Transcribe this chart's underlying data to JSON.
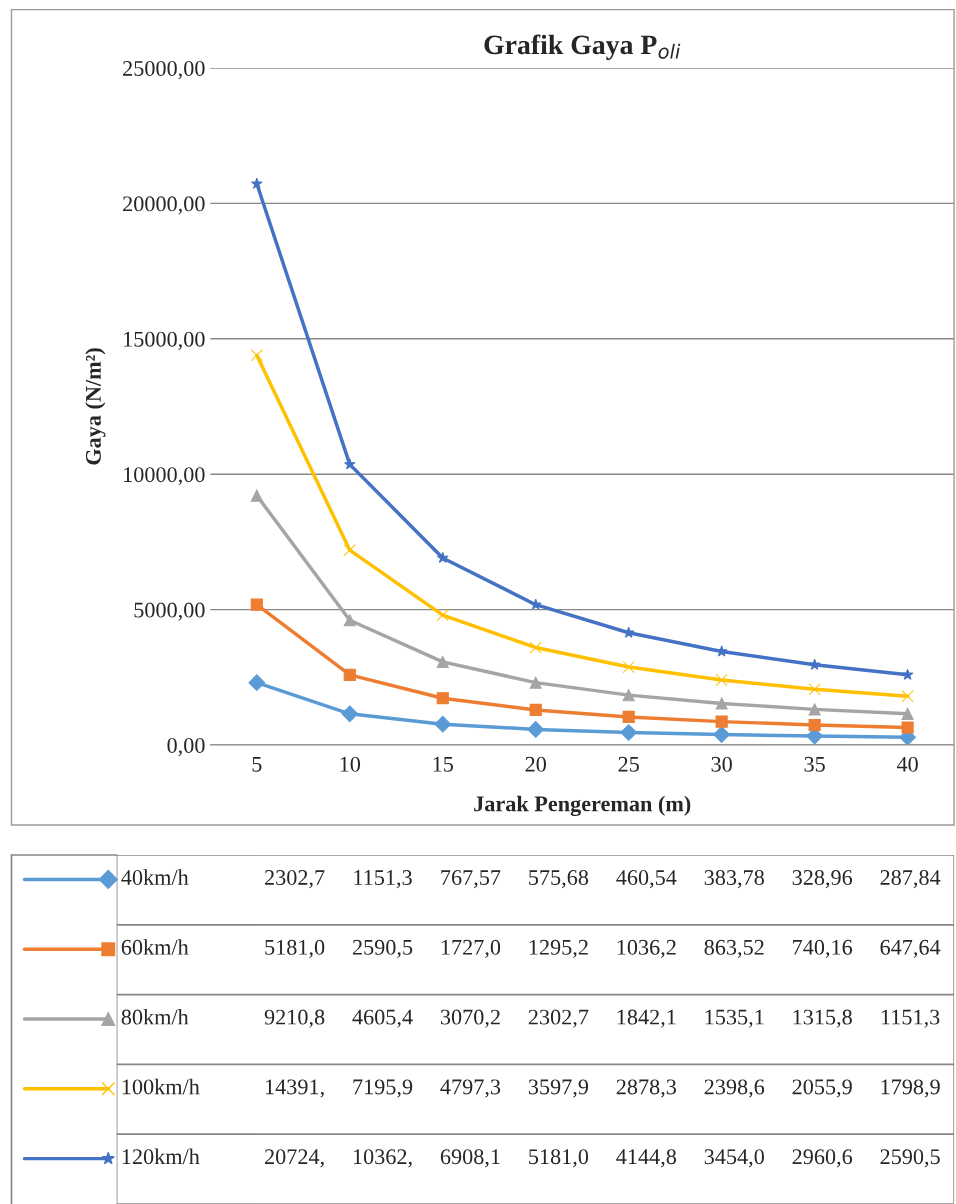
{
  "chart_data": {
    "type": "line",
    "title": "Grafik Gaya P$_{oli}$",
    "xlabel": "Jarak Pengereman (m)",
    "ylabel": "Gaya (N/m²)",
    "categories": [
      "5",
      "10",
      "15",
      "20",
      "25",
      "30",
      "35",
      "40"
    ],
    "ylim": [
      0,
      25000
    ],
    "yticks": [
      {
        "value": 0,
        "label": "0,00"
      },
      {
        "value": 5000,
        "label": "5000,00"
      },
      {
        "value": 10000,
        "label": "10000,00"
      },
      {
        "value": 15000,
        "label": "15000,00"
      },
      {
        "value": 20000,
        "label": "20000,00"
      },
      {
        "value": 25000,
        "label": "25000,00"
      }
    ],
    "grid": "y",
    "legend": "bottom",
    "data_labels": true,
    "series": [
      {
        "name": "40km/h",
        "color": "#5b9bd5",
        "marker": "diamond",
        "values": [
          2302.7,
          1151.3,
          767.57,
          575.68,
          460.54,
          383.78,
          328.96,
          287.84
        ],
        "value_labels": [
          "2302,7",
          "1151,3",
          "767,57",
          "575,68",
          "460,54",
          "383,78",
          "328,96",
          "287,84"
        ]
      },
      {
        "name": "60km/h",
        "color": "#ed7d31",
        "marker": "square",
        "values": [
          5181.0,
          2590.5,
          1727.0,
          1295.2,
          1036.2,
          863.52,
          740.16,
          647.64
        ],
        "value_labels": [
          "5181,0",
          "2590,5",
          "1727,0",
          "1295,2",
          "1036,2",
          "863,52",
          "740,16",
          "647,64"
        ]
      },
      {
        "name": "80km/h",
        "color": "#a5a5a5",
        "marker": "triangle",
        "values": [
          9210.8,
          4605.4,
          3070.2,
          2302.7,
          1842.1,
          1535.1,
          1315.8,
          1151.3
        ],
        "value_labels": [
          "9210,8",
          "4605,4",
          "3070,2",
          "2302,7",
          "1842,1",
          "1535,1",
          "1315,8",
          "1151,3"
        ]
      },
      {
        "name": "100km/h",
        "color": "#ffc000",
        "marker": "cross",
        "values": [
          14391,
          7195.9,
          4797.3,
          3597.9,
          2878.3,
          2398.6,
          2055.9,
          1798.9
        ],
        "value_labels": [
          "14391,",
          "7195,9",
          "4797,3",
          "3597,9",
          "2878,3",
          "2398,6",
          "2055,9",
          "1798,9"
        ]
      },
      {
        "name": "120km/h",
        "color": "#4472c4",
        "marker": "star",
        "values": [
          20724,
          10362,
          6908.1,
          5181.0,
          4144.8,
          3454.0,
          2960.6,
          2590.5
        ],
        "value_labels": [
          "20724,",
          "10362,",
          "6908,1",
          "5181,0",
          "4144,8",
          "3454,0",
          "2960,6",
          "2590,5"
        ]
      }
    ]
  }
}
